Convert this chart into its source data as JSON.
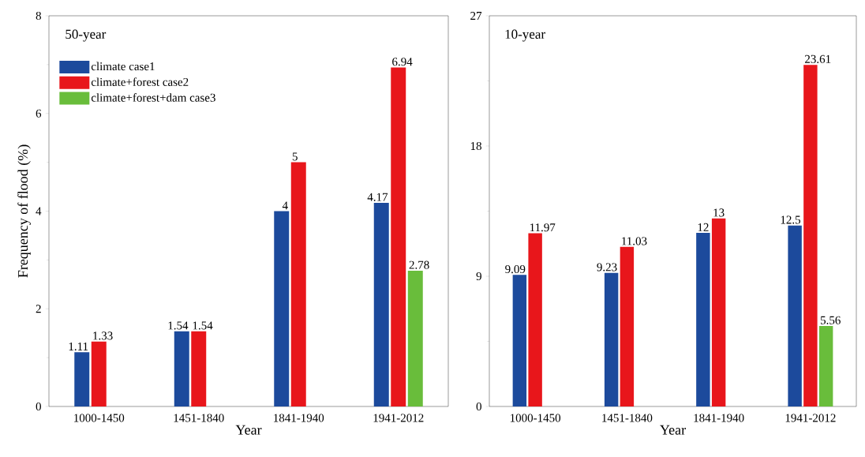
{
  "chart_data": [
    {
      "type": "bar",
      "title": "50-year",
      "xlabel": "Year",
      "ylabel": "Frequency of flood (%)",
      "categories": [
        "1000-1450",
        "1451-1840",
        "1841-1940",
        "1941-2012"
      ],
      "series": [
        {
          "name": "climate case1",
          "color": "#1c4a9c",
          "values": [
            1.11,
            1.54,
            4,
            4.17
          ]
        },
        {
          "name": "climate+forest case2",
          "color": "#e8161b",
          "values": [
            1.33,
            1.54,
            5,
            6.94
          ]
        },
        {
          "name": "climate+forest+dam case3",
          "color": "#69bd3b",
          "values": [
            null,
            null,
            null,
            2.78
          ]
        }
      ],
      "ylim": [
        0,
        8
      ],
      "yticks": [
        0,
        2,
        4,
        6,
        8
      ],
      "data_labels": true,
      "legend": "top left"
    },
    {
      "type": "bar",
      "title": "10-year",
      "xlabel": "Year",
      "categories": [
        "1000-1450",
        "1451-1840",
        "1841-1940",
        "1941-2012"
      ],
      "series": [
        {
          "color": "#1c4a9c",
          "values": [
            9.09,
            9.23,
            12,
            12.5
          ]
        },
        {
          "color": "#e8161b",
          "values": [
            11.97,
            11.03,
            13,
            23.61
          ]
        },
        {
          "color": "#69bd3b",
          "values": [
            null,
            null,
            null,
            5.56
          ]
        }
      ],
      "ylim": [
        0,
        27
      ],
      "yticks": [
        0,
        9,
        18,
        27
      ],
      "data_labels": true
    }
  ]
}
